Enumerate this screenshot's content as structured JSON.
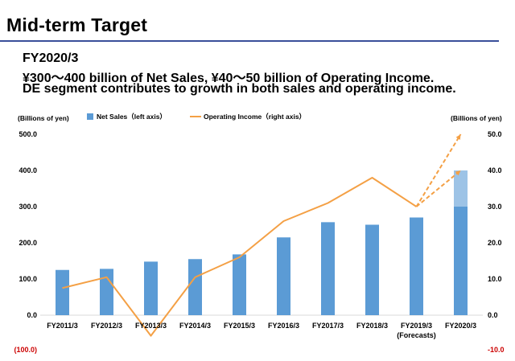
{
  "page": {
    "title": "Mid-term Target",
    "headline_1": "FY2020/3",
    "headline_2": "¥300～400 billion of Net Sales, ¥40～50 billion of Operating Income.",
    "headline_3": "DE segment contributes to growth in both sales and operating income."
  },
  "colors": {
    "bar": "#5b9bd5",
    "bar_target": "#9dc3e6",
    "line": "#f4a045",
    "negative": "#cc0000",
    "title_rule": "#3a4f9a"
  },
  "chart_data": {
    "type": "bar",
    "categories": [
      "FY2011/3",
      "FY2012/3",
      "FY2013/3",
      "FY2014/3",
      "FY2015/3",
      "FY2016/3",
      "FY2017/3",
      "FY2018/3",
      "FY2019/3",
      "FY2020/3"
    ],
    "category_sublabels": [
      "",
      "",
      "",
      "",
      "",
      "",
      "",
      "",
      "(Forecasts)",
      ""
    ],
    "ylabel_left": "(Billions of yen)",
    "ylabel_right": "(Billions of yen)",
    "ylim_left": [
      -100,
      500
    ],
    "ylim_right": [
      -10,
      50
    ],
    "yticks_left": [
      "(100.0)",
      "0.0",
      "100.0",
      "200.0",
      "300.0",
      "400.0",
      "500.0"
    ],
    "yticks_right": [
      "-10.0",
      "0.0",
      "10.0",
      "20.0",
      "30.0",
      "40.0",
      "50.0"
    ],
    "grid": false,
    "legend_position": "top",
    "series": [
      {
        "name": "Net Sales（left axis）",
        "type": "bar",
        "axis": "left",
        "values": [
          125,
          128,
          148,
          155,
          168,
          215,
          257,
          250,
          270,
          300
        ],
        "target_range_last": [
          300,
          400
        ]
      },
      {
        "name": "Operating Income（right axis）",
        "type": "line",
        "axis": "right",
        "values": [
          7.5,
          10.5,
          -5.7,
          10.5,
          16,
          26,
          31,
          38,
          30,
          null
        ],
        "target_last": [
          40,
          50
        ]
      }
    ]
  }
}
